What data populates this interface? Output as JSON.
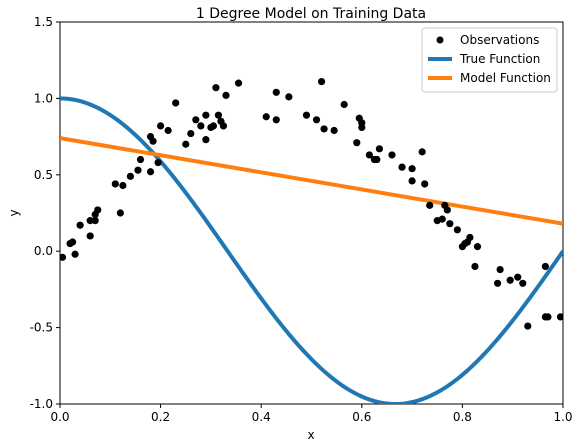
{
  "chart_data": {
    "type": "scatter",
    "title": "1 Degree Model on Training Data",
    "xlabel": "x",
    "ylabel": "y",
    "xlim": [
      0.0,
      1.0
    ],
    "ylim": [
      -1.0,
      1.5
    ],
    "xticks": [
      "0.0",
      "0.2",
      "0.4",
      "0.6",
      "0.8",
      "1.0"
    ],
    "yticks": [
      "-1.0",
      "-0.5",
      "0.0",
      "0.5",
      "1.0",
      "1.5"
    ],
    "grid": false,
    "legend_position": "top-right",
    "series": [
      {
        "name": "Observations",
        "kind": "scatter",
        "color": "#000000",
        "points": [
          [
            0.005,
            -0.04
          ],
          [
            0.02,
            0.05
          ],
          [
            0.025,
            0.06
          ],
          [
            0.03,
            -0.02
          ],
          [
            0.04,
            0.17
          ],
          [
            0.06,
            0.1
          ],
          [
            0.06,
            0.2
          ],
          [
            0.07,
            0.24
          ],
          [
            0.07,
            0.2
          ],
          [
            0.075,
            0.27
          ],
          [
            0.11,
            0.44
          ],
          [
            0.12,
            0.25
          ],
          [
            0.125,
            0.43
          ],
          [
            0.14,
            0.49
          ],
          [
            0.155,
            0.53
          ],
          [
            0.16,
            0.6
          ],
          [
            0.18,
            0.52
          ],
          [
            0.18,
            0.75
          ],
          [
            0.185,
            0.72
          ],
          [
            0.195,
            0.58
          ],
          [
            0.2,
            0.82
          ],
          [
            0.215,
            0.79
          ],
          [
            0.23,
            0.97
          ],
          [
            0.25,
            0.7
          ],
          [
            0.26,
            0.77
          ],
          [
            0.27,
            0.86
          ],
          [
            0.28,
            0.82
          ],
          [
            0.29,
            0.73
          ],
          [
            0.29,
            0.89
          ],
          [
            0.3,
            0.81
          ],
          [
            0.305,
            0.82
          ],
          [
            0.31,
            1.07
          ],
          [
            0.315,
            0.89
          ],
          [
            0.32,
            0.85
          ],
          [
            0.325,
            0.82
          ],
          [
            0.33,
            1.02
          ],
          [
            0.355,
            1.1
          ],
          [
            0.41,
            0.88
          ],
          [
            0.43,
            0.86
          ],
          [
            0.43,
            1.04
          ],
          [
            0.455,
            1.01
          ],
          [
            0.49,
            0.89
          ],
          [
            0.51,
            0.86
          ],
          [
            0.52,
            1.11
          ],
          [
            0.525,
            0.8
          ],
          [
            0.545,
            0.79
          ],
          [
            0.565,
            0.96
          ],
          [
            0.59,
            0.71
          ],
          [
            0.595,
            0.87
          ],
          [
            0.6,
            0.84
          ],
          [
            0.6,
            0.81
          ],
          [
            0.615,
            0.63
          ],
          [
            0.625,
            0.6
          ],
          [
            0.63,
            0.6
          ],
          [
            0.635,
            0.67
          ],
          [
            0.66,
            0.63
          ],
          [
            0.68,
            0.55
          ],
          [
            0.7,
            0.46
          ],
          [
            0.7,
            0.54
          ],
          [
            0.72,
            0.65
          ],
          [
            0.725,
            0.44
          ],
          [
            0.735,
            0.3
          ],
          [
            0.75,
            0.2
          ],
          [
            0.76,
            0.21
          ],
          [
            0.765,
            0.3
          ],
          [
            0.77,
            0.27
          ],
          [
            0.775,
            0.18
          ],
          [
            0.79,
            0.14
          ],
          [
            0.8,
            0.03
          ],
          [
            0.805,
            0.05
          ],
          [
            0.81,
            0.06
          ],
          [
            0.815,
            0.09
          ],
          [
            0.825,
            -0.1
          ],
          [
            0.83,
            0.03
          ],
          [
            0.87,
            -0.21
          ],
          [
            0.875,
            -0.12
          ],
          [
            0.895,
            -0.19
          ],
          [
            0.91,
            -0.17
          ],
          [
            0.92,
            -0.21
          ],
          [
            0.93,
            -0.49
          ],
          [
            0.965,
            -0.43
          ],
          [
            0.965,
            -0.1
          ],
          [
            0.97,
            -0.43
          ],
          [
            0.995,
            -0.43
          ]
        ]
      },
      {
        "name": "True Function",
        "kind": "line",
        "color": "#1f77b4",
        "function": "cos(1.5*pi*x)",
        "x_range": [
          0.0,
          1.0
        ]
      },
      {
        "name": "Model Function",
        "kind": "line",
        "color": "#ff7f0e",
        "x": [
          0.0,
          1.0
        ],
        "y": [
          0.74,
          0.18
        ]
      }
    ]
  }
}
